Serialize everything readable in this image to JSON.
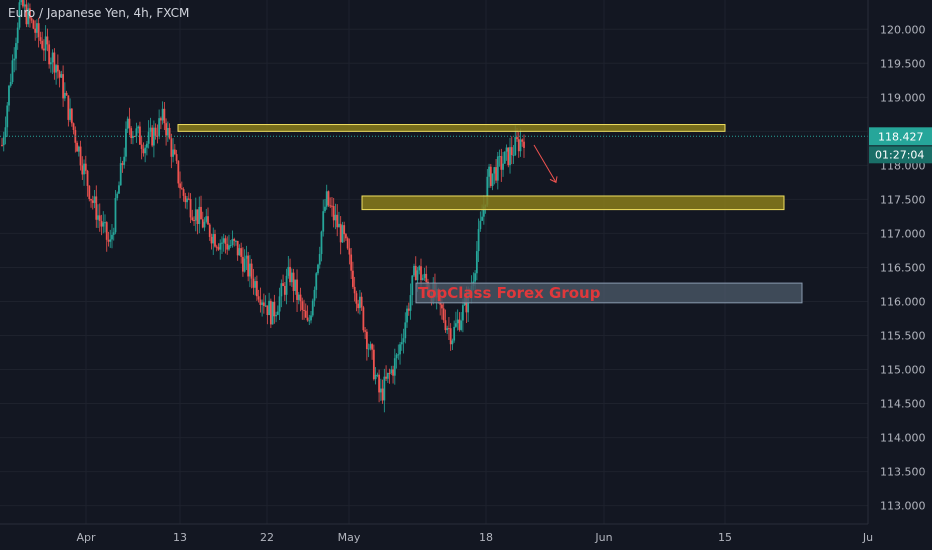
{
  "title": "Euro / Japanese Yen, 4h, FXCM",
  "colors": {
    "background": "#131722",
    "grid": "#1e222d",
    "axis_text": "#b2b5be",
    "up": "#26a69a",
    "down": "#ef5350",
    "zone_fill": "#8a7d1a",
    "zone_stroke": "#f0e060",
    "label_box_fill": "#4a5866",
    "watermark_text": "#e0383b",
    "price_line": "#26a69a",
    "arrow": "#ef5350"
  },
  "chart_data": {
    "type": "candlestick",
    "title": "Euro / Japanese Yen, 4h, FXCM",
    "xlabel": "",
    "ylabel": "",
    "ylim": [
      112.73,
      120.43
    ],
    "x_ticks": [
      "Apr",
      "13",
      "22",
      "May",
      "18",
      "Jun",
      "15",
      "Ju"
    ],
    "y_ticks": [
      "120.000",
      "119.500",
      "119.000",
      "118.500",
      "118.000",
      "117.500",
      "117.000",
      "116.500",
      "116.000",
      "115.500",
      "115.000",
      "114.500",
      "114.000",
      "113.500",
      "113.000"
    ],
    "y_tick_values": [
      120.0,
      119.5,
      119.0,
      118.5,
      118.0,
      117.5,
      117.0,
      116.5,
      116.0,
      115.5,
      115.0,
      114.5,
      114.0,
      113.5,
      113.0
    ],
    "series_close": [
      118.3,
      120.4,
      119.9,
      119.5,
      118.5,
      117.5,
      116.8,
      118.6,
      118.3,
      118.7,
      117.6,
      117.2,
      116.9,
      116.8,
      116.3,
      115.8,
      116.4,
      115.6,
      117.5,
      116.9,
      115.8,
      114.6,
      115.2,
      116.5,
      116.1,
      115.5,
      116.1,
      117.8,
      118.1,
      118.427
    ],
    "current_price": "118.427",
    "countdown": "01:27:04",
    "zones": [
      {
        "y_top": 118.6,
        "y_bottom": 118.5
      },
      {
        "y_top": 117.55,
        "y_bottom": 117.35
      }
    ],
    "label_zone": {
      "y_top": 116.27,
      "y_bottom": 115.98,
      "text": "TopClass Forex Group"
    },
    "arrow": {
      "from_price": 118.3,
      "to_price": 117.75
    }
  }
}
